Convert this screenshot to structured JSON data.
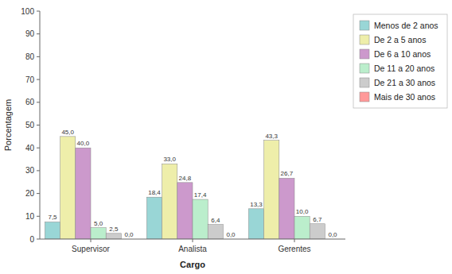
{
  "chart_data": {
    "type": "bar",
    "xlabel": "Cargo",
    "ylabel": "Porcentagem",
    "categories": [
      "Supervisor",
      "Analista",
      "Gerentes"
    ],
    "series": [
      {
        "name": "Menos de 2 anos",
        "color": "#99D6D6",
        "values": [
          7.5,
          18.4,
          13.3
        ],
        "value_labels": [
          "7,5",
          "18,4",
          "13,3"
        ]
      },
      {
        "name": "De 2 a 5 anos",
        "color": "#EEEEAA",
        "values": [
          45.0,
          33.0,
          43.3
        ],
        "value_labels": [
          "45,0",
          "33,0",
          "43,3"
        ]
      },
      {
        "name": "De 6 a 10 anos",
        "color": "#CC99CC",
        "values": [
          40.0,
          24.8,
          26.7
        ],
        "value_labels": [
          "40,0",
          "24,8",
          "26,7"
        ]
      },
      {
        "name": "De 11 a 20 anos",
        "color": "#BBEECC",
        "values": [
          5.0,
          17.4,
          10.0
        ],
        "value_labels": [
          "5,0",
          "17,4",
          "10,0"
        ]
      },
      {
        "name": "De 21 a 30 anos",
        "color": "#CCCCCC",
        "values": [
          2.5,
          6.4,
          6.7
        ],
        "value_labels": [
          "2,5",
          "6,4",
          "6,7"
        ]
      },
      {
        "name": "Mais de 30 anos",
        "color": "#FF9999",
        "values": [
          0.0,
          0.0,
          0.0
        ],
        "value_labels": [
          "0,0",
          "0,0",
          "0,0"
        ]
      }
    ],
    "ylim": [
      0,
      100
    ],
    "yticks": [
      0,
      10,
      20,
      30,
      40,
      50,
      60,
      70,
      80,
      90,
      100
    ],
    "grid": false,
    "legend": "right",
    "data_labels": true
  }
}
